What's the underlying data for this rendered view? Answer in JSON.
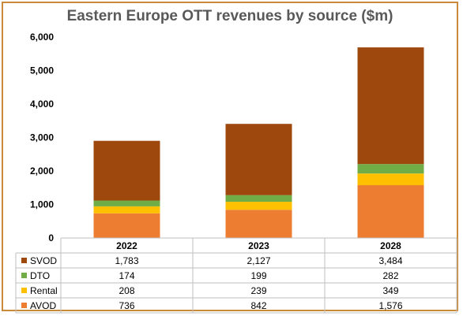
{
  "chart_data": {
    "type": "bar",
    "stacked": true,
    "title": "Eastern Europe OTT revenues by source ($m)",
    "categories": [
      "2022",
      "2023",
      "2028"
    ],
    "series": [
      {
        "name": "AVOD",
        "values": [
          736,
          842,
          1576
        ],
        "labels": [
          "736",
          "842",
          "1,576"
        ],
        "color": "#ed7d31"
      },
      {
        "name": "Rental",
        "values": [
          208,
          239,
          349
        ],
        "labels": [
          "208",
          "239",
          "349"
        ],
        "color": "#ffc000"
      },
      {
        "name": "DTO",
        "values": [
          174,
          199,
          282
        ],
        "labels": [
          "174",
          "199",
          "282"
        ],
        "color": "#70ad47"
      },
      {
        "name": "SVOD",
        "values": [
          1783,
          2127,
          3484
        ],
        "labels": [
          "1,783",
          "2,127",
          "3,484"
        ],
        "color": "#9e480e"
      }
    ],
    "table_row_order": [
      "SVOD",
      "DTO",
      "Rental",
      "AVOD"
    ],
    "ylim": [
      0,
      6000
    ],
    "yticks": [
      "0",
      "1,000",
      "2,000",
      "3,000",
      "4,000",
      "5,000",
      "6,000"
    ],
    "grid": false,
    "legend": "data table below chart"
  }
}
